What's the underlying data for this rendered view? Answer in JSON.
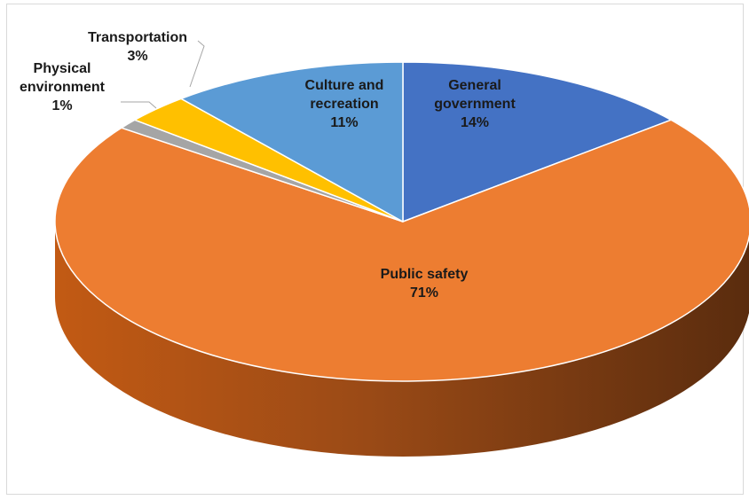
{
  "chart_data": {
    "type": "pie",
    "style": "3d",
    "title": "",
    "legend": "none",
    "series": [
      {
        "name": "",
        "slices": [
          {
            "category": "General government",
            "label_lines": [
              "General",
              "government"
            ],
            "value": 14,
            "label": "14%",
            "color": "#4472C4"
          },
          {
            "category": "Public safety",
            "label_lines": [
              "Public safety"
            ],
            "value": 71,
            "label": "71%",
            "color": "#ED7D31"
          },
          {
            "category": "Physical environment",
            "label_lines": [
              "Physical",
              "environment"
            ],
            "value": 1,
            "label": "1%",
            "color": "#A5A5A5"
          },
          {
            "category": "Transportation",
            "label_lines": [
              "Transportation"
            ],
            "value": 3,
            "label": "3%",
            "color": "#FFC000"
          },
          {
            "category": "Culture and recreation",
            "label_lines": [
              "Culture and",
              "recreation"
            ],
            "value": 11,
            "label": "11%",
            "color": "#5B9BD5"
          }
        ]
      }
    ]
  }
}
